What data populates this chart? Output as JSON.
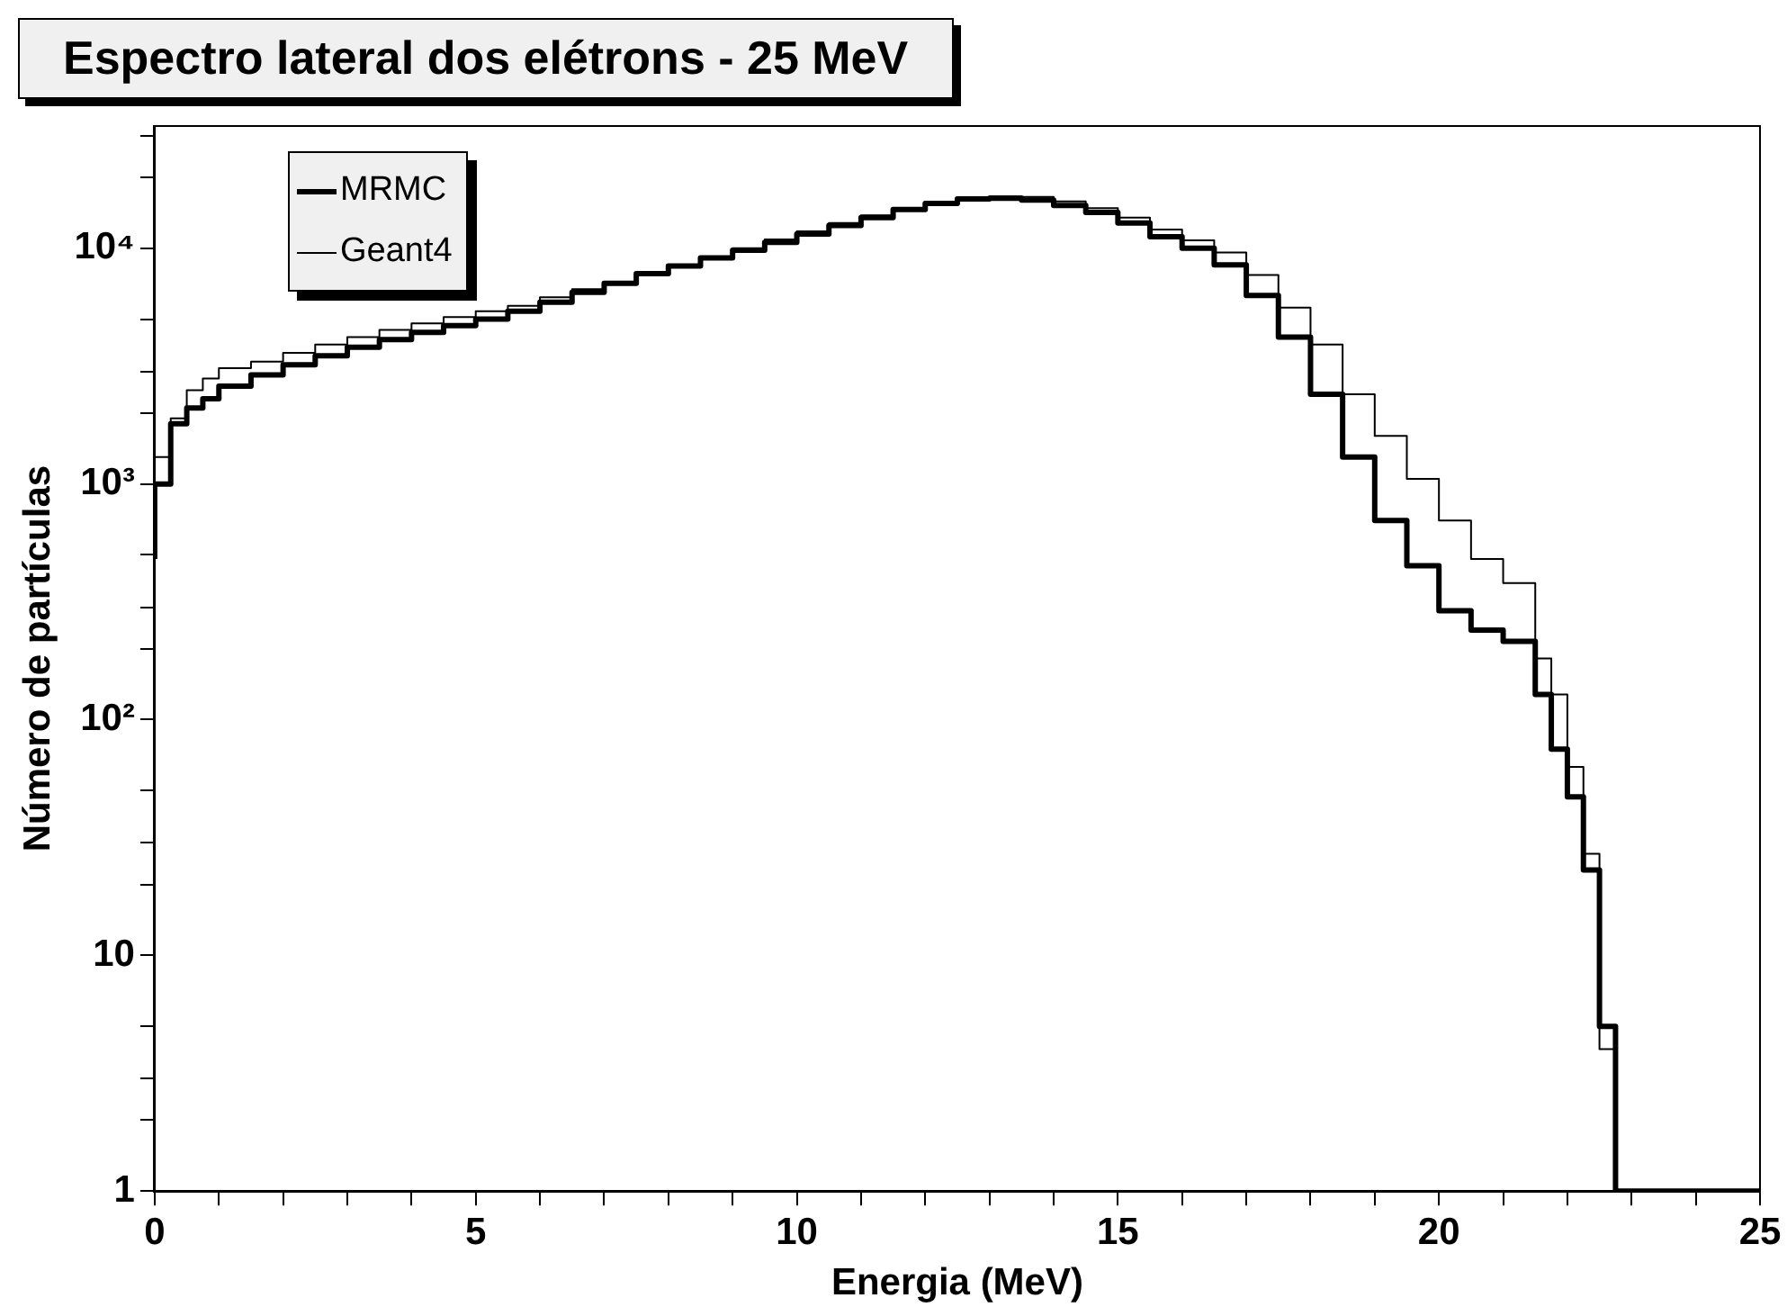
{
  "chart_data": {
    "type": "step",
    "title": "Espectro lateral dos elétrons - 25 MeV",
    "xlabel": "Energia (MeV)",
    "ylabel": "Número de partículas",
    "log": "y",
    "grid": false,
    "legend": "top left",
    "marker": "none",
    "line_style": "solid",
    "xlim": [
      0,
      25
    ],
    "xticks": [
      0,
      {
        "value": 1,
        "label": null
      },
      {
        "value": 2,
        "label": null
      },
      {
        "value": 3,
        "label": null
      },
      {
        "value": 4,
        "label": null
      },
      5,
      {
        "value": 6,
        "label": null
      },
      {
        "value": 7,
        "label": null
      },
      {
        "value": 8,
        "label": null
      },
      {
        "value": 9,
        "label": null
      },
      10,
      {
        "value": 11,
        "label": null
      },
      {
        "value": 12,
        "label": null
      },
      {
        "value": 13,
        "label": null
      },
      {
        "value": 14,
        "label": null
      },
      15,
      {
        "value": 16,
        "label": null
      },
      {
        "value": 17,
        "label": null
      },
      {
        "value": 18,
        "label": null
      },
      {
        "value": 19,
        "label": null
      },
      20,
      {
        "value": 21,
        "label": null
      },
      {
        "value": 22,
        "label": null
      },
      {
        "value": 23,
        "label": null
      },
      {
        "value": 24,
        "label": null
      },
      25
    ],
    "ylim": [
      1,
      33000
    ],
    "yticks": [
      1,
      {
        "value": 2,
        "label": null
      },
      {
        "value": 3,
        "label": null
      },
      {
        "value": 5,
        "label": null
      },
      10,
      {
        "value": 20,
        "label": null
      },
      {
        "value": 30,
        "label": null
      },
      {
        "value": 50,
        "label": null
      },
      {
        "value": 100,
        "label": "10²"
      },
      {
        "value": 200,
        "label": null
      },
      {
        "value": 300,
        "label": null
      },
      {
        "value": 500,
        "label": null
      },
      {
        "value": 1000,
        "label": "10³"
      },
      {
        "value": 2000,
        "label": null
      },
      {
        "value": 3000,
        "label": null
      },
      {
        "value": 5000,
        "label": null
      },
      {
        "value": 10000,
        "label": "10⁴"
      },
      {
        "value": 20000,
        "label": null
      },
      {
        "value": 30000,
        "label": null
      }
    ],
    "series": [
      {
        "name": "MRMC",
        "color": "#000000",
        "x": [
          0,
          0.25,
          0.5,
          0.75,
          1,
          1.5,
          2,
          2.5,
          3,
          3.5,
          4,
          4.5,
          5,
          5.5,
          6,
          6.5,
          7,
          7.5,
          8,
          8.5,
          9,
          9.5,
          10,
          10.5,
          11,
          11.5,
          12,
          12.5,
          13,
          13.5,
          14,
          14.5,
          15,
          15.5,
          16,
          16.5,
          17,
          17.5,
          18,
          18.5,
          19,
          19.5,
          20,
          20.5,
          21,
          21.5,
          21.75,
          22,
          22.25,
          22.5,
          22.75,
          23,
          25
        ],
        "values": [
          480,
          1000,
          1800,
          2100,
          2300,
          2600,
          2900,
          3200,
          3500,
          3800,
          4100,
          4400,
          4700,
          5000,
          5400,
          5900,
          6500,
          7100,
          7800,
          8400,
          9100,
          9800,
          10600,
          11500,
          12500,
          13500,
          14600,
          15500,
          16200,
          16300,
          16000,
          15200,
          14200,
          12800,
          11200,
          10000,
          8500,
          6300,
          4200,
          2400,
          1300,
          700,
          450,
          290,
          240,
          215,
          128,
          75,
          47,
          23,
          5,
          1,
          1
        ]
      },
      {
        "name": "Geant4",
        "color": "#000000",
        "x": [
          0,
          0.25,
          0.5,
          0.75,
          1,
          1.5,
          2,
          2.5,
          3,
          3.5,
          4,
          4.5,
          5,
          5.5,
          6,
          6.5,
          7,
          7.5,
          8,
          8.5,
          9,
          9.5,
          10,
          10.5,
          11,
          11.5,
          12,
          12.5,
          13,
          13.5,
          14,
          14.5,
          15,
          15.5,
          16,
          16.5,
          17,
          17.5,
          18,
          18.5,
          19,
          19.5,
          20,
          20.5,
          21,
          21.5,
          21.75,
          22,
          22.25,
          22.5,
          22.75,
          23,
          25
        ],
        "values": [
          350,
          1300,
          1900,
          2500,
          2800,
          3100,
          3300,
          3600,
          3900,
          4200,
          4500,
          4800,
          5100,
          5400,
          5700,
          6200,
          6700,
          7200,
          7800,
          8500,
          9200,
          10000,
          10900,
          11800,
          12800,
          13800,
          14800,
          15700,
          16300,
          16600,
          16500,
          15800,
          14800,
          13500,
          12000,
          10800,
          9600,
          7700,
          5600,
          3900,
          2400,
          1600,
          1050,
          700,
          480,
          380,
          182,
          128,
          63,
          27,
          4,
          1,
          1
        ]
      }
    ]
  }
}
